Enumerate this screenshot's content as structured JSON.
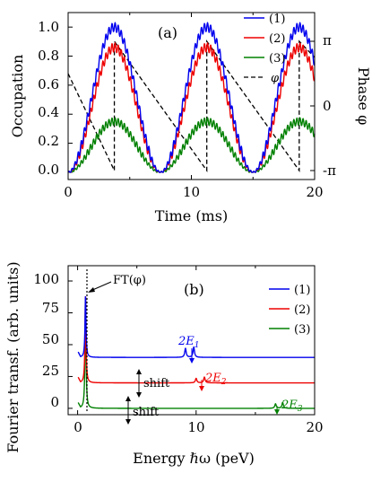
{
  "colors": {
    "s1": "#0000ee",
    "s2": "#ee0000",
    "s3": "#008000",
    "phase": "#000000"
  },
  "chart_data": [
    {
      "panel": "(a)",
      "type": "line",
      "xlabel": "Time (ms)",
      "ylabel": "Occupation",
      "y2label": "Phase φ",
      "xlim": [
        0,
        20
      ],
      "ylim": [
        -0.05,
        1.1
      ],
      "xticks": [
        "0",
        "10",
        "20"
      ],
      "yticks": [
        "0.0",
        "0.2",
        "0.4",
        "0.6",
        "0.8",
        "1.0"
      ],
      "y2ticks": [
        "π",
        "0",
        "-π"
      ],
      "legend_position": "top-right",
      "period_ms": 7.5,
      "series": [
        {
          "name": "(1)",
          "color_key": "s1",
          "amplitude": 1.0,
          "ripple": 0.03,
          "x": [
            0,
            1.875,
            3.75,
            5.625,
            7.5,
            9.375,
            11.25,
            13.125,
            15,
            16.875,
            18.75,
            20
          ],
          "y": [
            0,
            0.5,
            1.0,
            0.5,
            0,
            0.5,
            1.0,
            0.5,
            0,
            0.5,
            1.0,
            0.87
          ]
        },
        {
          "name": "(2)",
          "color_key": "s2",
          "amplitude": 0.86,
          "ripple": 0.03,
          "x": [
            0,
            1.875,
            3.75,
            5.625,
            7.5,
            9.375,
            11.25,
            13.125,
            15,
            16.875,
            18.75,
            20
          ],
          "y": [
            0,
            0.43,
            0.86,
            0.43,
            0,
            0.43,
            0.86,
            0.43,
            0,
            0.43,
            0.86,
            0.75
          ]
        },
        {
          "name": "(3)",
          "color_key": "s3",
          "amplitude": 0.35,
          "ripple": 0.025,
          "x": [
            0,
            1.875,
            3.75,
            5.625,
            7.5,
            9.375,
            11.25,
            13.125,
            15,
            16.875,
            18.75,
            20
          ],
          "y": [
            0,
            0.175,
            0.35,
            0.175,
            0,
            0.175,
            0.35,
            0.175,
            0,
            0.175,
            0.35,
            0.3
          ]
        },
        {
          "name": "φ",
          "color_key": "phase",
          "style": "dashed",
          "axis": "right",
          "x_unit": "ms",
          "y_unit": "rad",
          "points": [
            [
              0,
              1.571
            ],
            [
              3.75,
              -3.1416
            ],
            [
              3.75,
              3.1416
            ],
            [
              11.25,
              -3.1416
            ],
            [
              11.25,
              3.1416
            ],
            [
              18.75,
              -3.1416
            ],
            [
              18.75,
              3.1416
            ],
            [
              20,
              2.356
            ]
          ]
        }
      ]
    },
    {
      "panel": "(b)",
      "type": "line",
      "xlabel": "Energy ℏω (peV)",
      "ylabel": "Fourier transf. (arb. units)",
      "xlim": [
        -0.8,
        20
      ],
      "ylim": [
        -5,
        112
      ],
      "xticks": [
        "0",
        "10",
        "20"
      ],
      "yticks": [
        "0",
        "25",
        "50",
        "75",
        "100"
      ],
      "legend_position": "top-right",
      "annotations": {
        "ft": "FT(φ)",
        "shift1": "shift",
        "shift2": "shift",
        "two_e": "2E",
        "sub1": "1",
        "sub2": "2",
        "sub3": "3"
      },
      "series": [
        {
          "name": "(1)",
          "color_key": "s1",
          "offset": 40,
          "peaks": [
            {
              "x": 0.667,
              "height": 48,
              "width": 0.1
            },
            {
              "x": 9.1,
              "height": 7,
              "width": 0.15
            },
            {
              "x": 9.8,
              "height": 8,
              "width": 0.15
            }
          ]
        },
        {
          "name": "(2)",
          "color_key": "s2",
          "offset": 20,
          "peaks": [
            {
              "x": 0.667,
              "height": 68,
              "width": 0.1
            },
            {
              "x": 10.0,
              "height": 3.5,
              "width": 0.15
            },
            {
              "x": 10.7,
              "height": 4.5,
              "width": 0.15
            }
          ]
        },
        {
          "name": "(3)",
          "color_key": "s3",
          "offset": 0,
          "peaks": [
            {
              "x": 0.667,
              "height": 86,
              "width": 0.1
            },
            {
              "x": 16.7,
              "height": 3.5,
              "width": 0.15
            },
            {
              "x": 17.3,
              "height": 4.5,
              "width": 0.15
            }
          ]
        }
      ]
    }
  ]
}
